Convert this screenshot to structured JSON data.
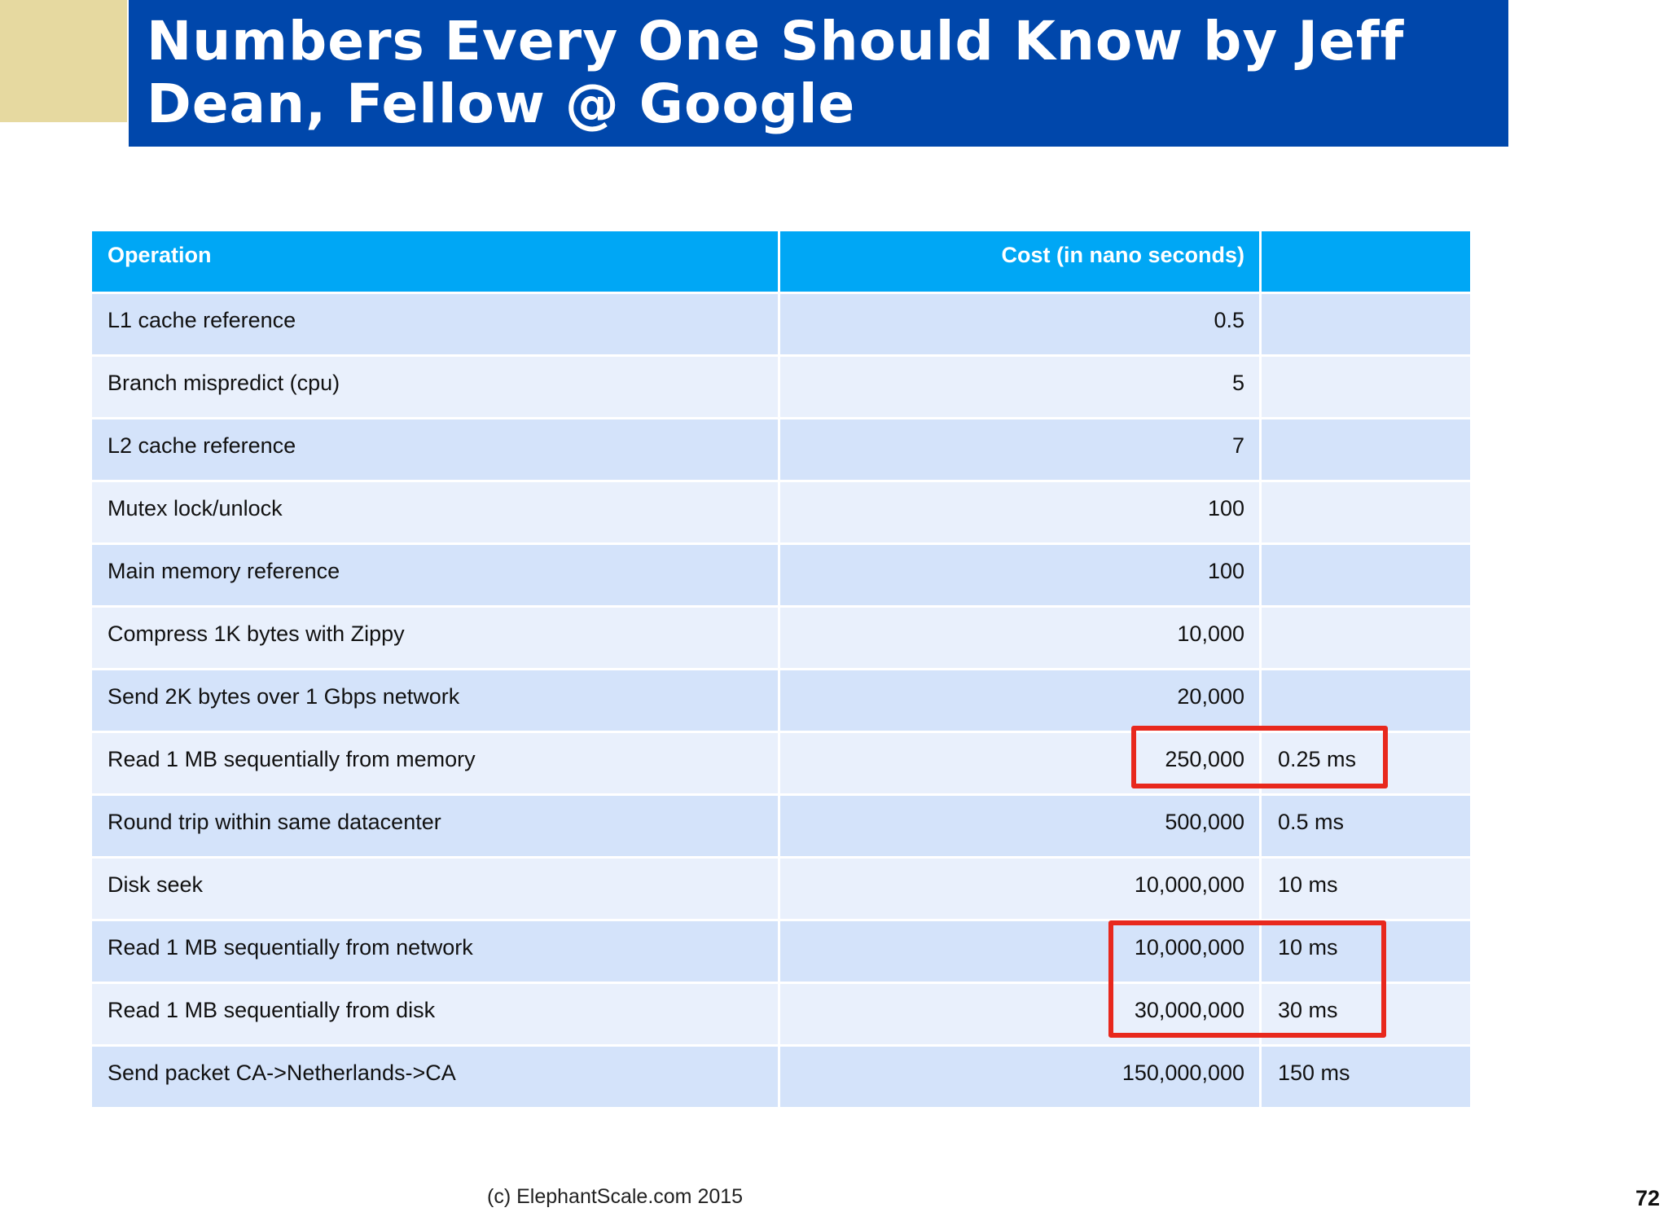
{
  "title": "Numbers Every One Should Know by Jeff\nDean, Fellow @ Google",
  "table": {
    "headers": [
      "Operation",
      "Cost (in nano seconds)",
      ""
    ],
    "rows": [
      {
        "operation": "L1 cache reference",
        "cost": "0.5",
        "ms": ""
      },
      {
        "operation": "Branch mispredict (cpu)",
        "cost": "5",
        "ms": ""
      },
      {
        "operation": "L2 cache reference",
        "cost": "7",
        "ms": ""
      },
      {
        "operation": "Mutex lock/unlock",
        "cost": "100",
        "ms": ""
      },
      {
        "operation": "Main memory reference",
        "cost": "100",
        "ms": ""
      },
      {
        "operation": "Compress 1K bytes with Zippy",
        "cost": "10,000",
        "ms": ""
      },
      {
        "operation": "Send 2K bytes over 1 Gbps network",
        "cost": "20,000",
        "ms": ""
      },
      {
        "operation": "Read 1 MB sequentially from memory",
        "cost": "250,000",
        "ms": "0.25 ms"
      },
      {
        "operation": "Round trip within same datacenter",
        "cost": "500,000",
        "ms": "0.5 ms"
      },
      {
        "operation": "Disk seek",
        "cost": "10,000,000",
        "ms": "10 ms"
      },
      {
        "operation": "Read 1 MB sequentially from network",
        "cost": "10,000,000",
        "ms": "10 ms"
      },
      {
        "operation": "Read 1 MB sequentially from disk",
        "cost": "30,000,000",
        "ms": "30 ms"
      },
      {
        "operation": "Send packet CA->Netherlands->CA",
        "cost": "150,000,000",
        "ms": "150 ms"
      }
    ]
  },
  "footer": {
    "copyright": "(c) ElephantScale.com  2015",
    "page_number": "72"
  },
  "colors": {
    "title_bar": "#0047ab",
    "accent_block": "#e6d9a0",
    "header_row": "#00a7f5",
    "row_odd": "#d4e3fa",
    "row_even": "#e9f0fc",
    "highlight_box": "#e8281d"
  }
}
